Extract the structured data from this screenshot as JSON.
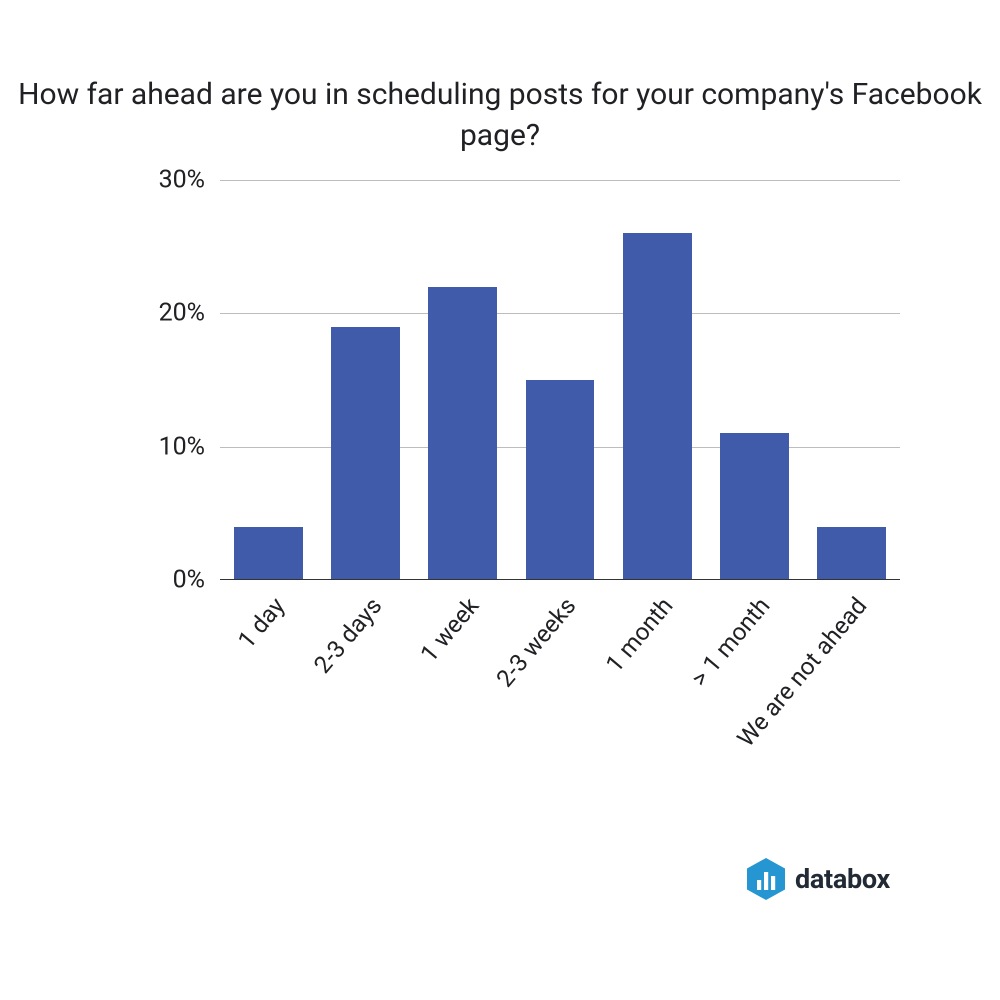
{
  "chart": {
    "type": "bar",
    "title": "How far ahead are you in scheduling posts for your company's Facebook page?",
    "title_fontsize": 30,
    "title_color": "#202124",
    "categories": [
      "1 day",
      "2-3 days",
      "1 week",
      "2-3 weeks",
      "1 month",
      "> 1 month",
      "We are not ahead"
    ],
    "values": [
      4,
      19,
      22,
      15,
      26,
      11,
      4
    ],
    "bar_color": "#3f5baa",
    "bar_width": 0.71,
    "ylim": [
      0,
      30
    ],
    "ytick_step": 10,
    "ytick_labels": [
      "0%",
      "10%",
      "20%",
      "30%"
    ],
    "ytick_values": [
      0,
      10,
      20,
      30
    ],
    "ytick_fontsize": 25,
    "xlabel_fontsize": 24,
    "xlabel_rotation_deg": -50,
    "grid_color": "#bdbdbd",
    "baseline_color": "#333333",
    "background_color": "#ffffff"
  },
  "logo": {
    "text": "databox",
    "text_color": "#212a35",
    "icon_color": "#2596d1",
    "icon_bar_color": "#ffffff"
  }
}
